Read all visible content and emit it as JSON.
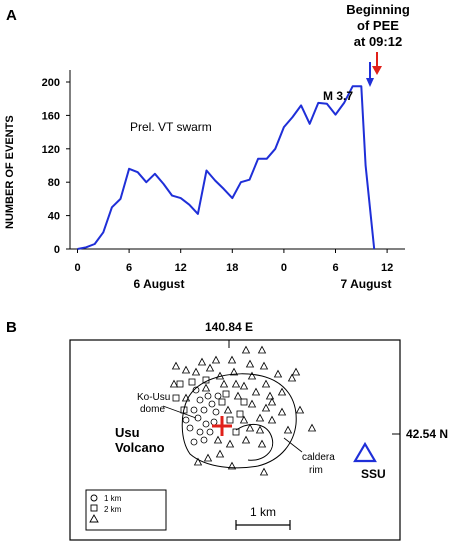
{
  "panel_a": {
    "label": "A",
    "annotation_pee": [
      "Beginning",
      "of PEE",
      "at 09:12"
    ],
    "annotation_m": "M 3.7",
    "swarm_label": "Prel. VT swarm",
    "colors": {
      "line": "#1f2fd8",
      "blue_arrow": "#1f2fd8",
      "red_arrow": "#e0201a"
    }
  },
  "chart_data": [
    {
      "type": "line",
      "title": "",
      "xlabel": "",
      "ylabel": "NUMBER OF EVENTS",
      "x_tick_labels": [
        "0",
        "6",
        "12",
        "18",
        "0",
        "6",
        "12"
      ],
      "x_tick_hours": [
        0,
        6,
        12,
        18,
        24,
        30,
        36
      ],
      "x_group_labels": [
        "6 August",
        "7 August"
      ],
      "x_range_hours": [
        0,
        36
      ],
      "ylim": [
        0,
        200
      ],
      "y_ticks": [
        0,
        40,
        80,
        120,
        160,
        200
      ],
      "grid": false,
      "series": [
        {
          "x": [
            0,
            1,
            2,
            3,
            4,
            5,
            6,
            7,
            8,
            9,
            10,
            11,
            12,
            13,
            14,
            15,
            16,
            17,
            18,
            19,
            20,
            21,
            22,
            23,
            24,
            25,
            26,
            27,
            28,
            29,
            30,
            31,
            32,
            33,
            33.5,
            34.5
          ],
          "values": [
            0,
            2,
            6,
            20,
            50,
            60,
            96,
            92,
            80,
            90,
            78,
            64,
            61,
            53,
            42,
            94,
            82,
            72,
            61,
            80,
            83,
            108,
            108,
            120,
            146,
            158,
            172,
            150,
            175,
            174,
            161,
            175,
            195,
            195,
            100,
            0
          ]
        }
      ]
    }
  ],
  "panel_b": {
    "label": "B",
    "lon_label": "140.84 E",
    "lat_label": "42.54 N",
    "kousu_label": [
      "Ko-Usu",
      "dome"
    ],
    "volcano_label": [
      "Usu",
      "Volcano"
    ],
    "caldera_label": [
      "caldera",
      "rim"
    ],
    "station_label": "SSU",
    "legend_items": [
      "1 km",
      "2 km"
    ],
    "scale_label": "1 km",
    "colors": {
      "station": "#1f2fd8",
      "cross": "#e0201a"
    }
  }
}
